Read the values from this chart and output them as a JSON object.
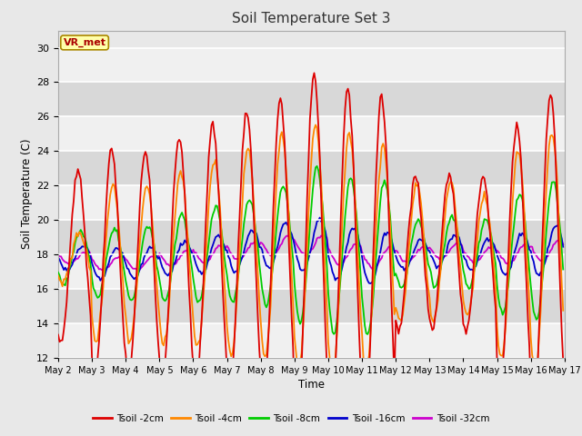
{
  "title": "Soil Temperature Set 3",
  "xlabel": "Time",
  "ylabel": "Soil Temperature (C)",
  "ylim": [
    12,
    31
  ],
  "yticks": [
    12,
    14,
    16,
    18,
    20,
    22,
    24,
    26,
    28,
    30
  ],
  "date_labels": [
    "May 2",
    "May 3",
    "May 4",
    "May 5",
    "May 6",
    "May 7",
    "May 8",
    "May 9",
    "May 10",
    "May 11",
    "May 12",
    "May 13",
    "May 14",
    "May 15",
    "May 16",
    "May 17"
  ],
  "legend_labels": [
    "Tsoil -2cm",
    "Tsoil -4cm",
    "Tsoil -8cm",
    "Tsoil -16cm",
    "Tsoil -32cm"
  ],
  "legend_colors": [
    "#dd0000",
    "#ff8800",
    "#00cc00",
    "#0000cc",
    "#cc00cc"
  ],
  "annotation_text": "VR_met",
  "annotation_box_color": "#ffffaa",
  "annotation_text_color": "#aa0000",
  "background_color": "#e8e8e8",
  "plot_bg_color": "#e8e8e8",
  "band_color_dark": "#d8d8d8",
  "band_color_light": "#f0f0f0",
  "grid_color": "#ffffff"
}
